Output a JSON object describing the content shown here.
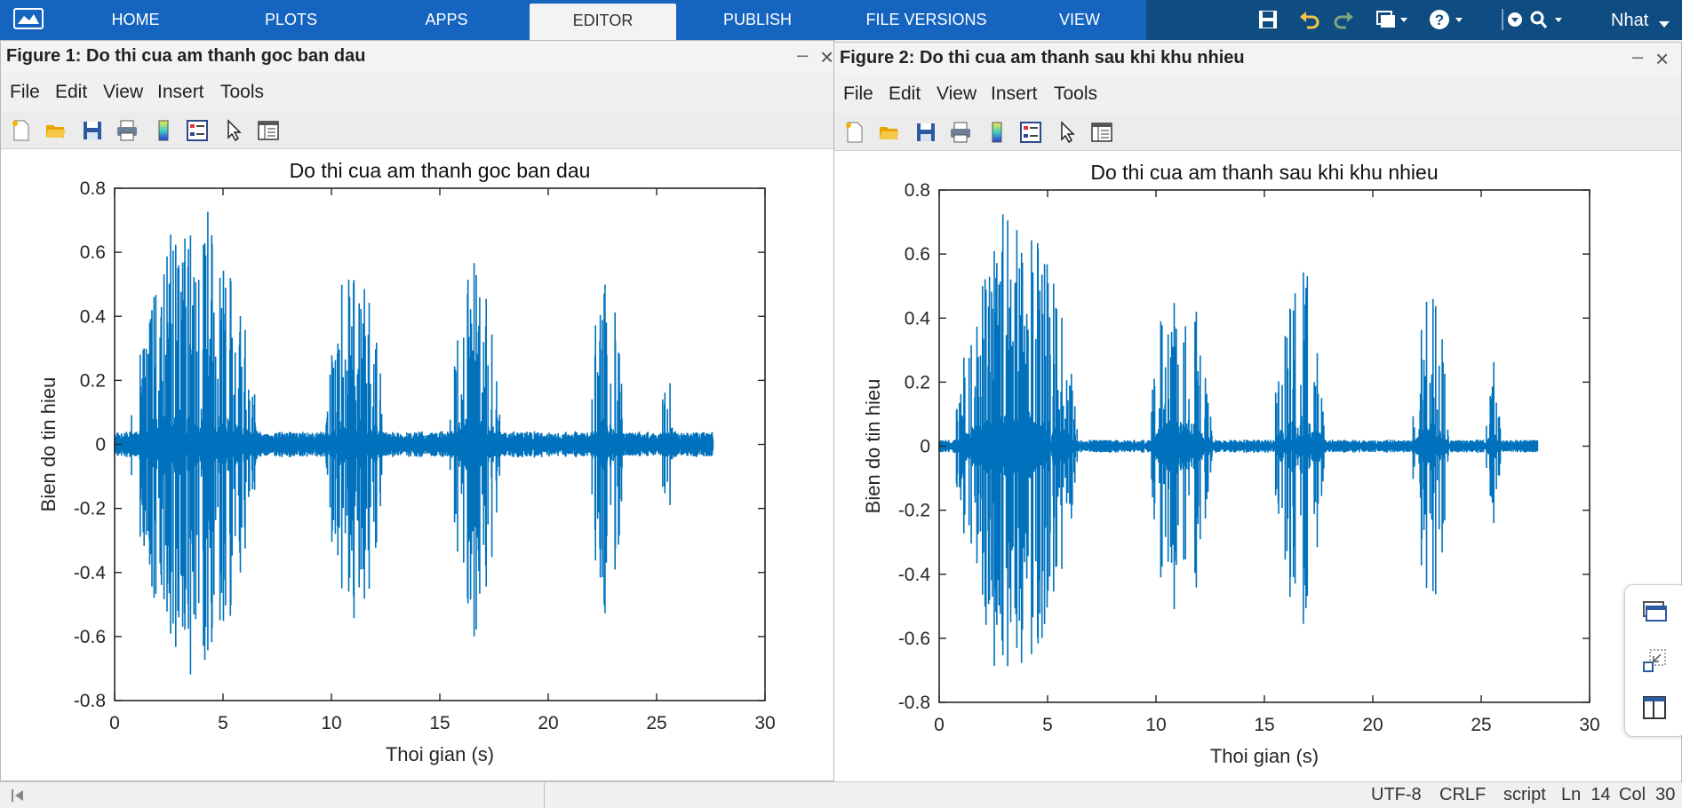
{
  "toolstrip": {
    "tabs": [
      {
        "label": "HOME"
      },
      {
        "label": "PLOTS"
      },
      {
        "label": "APPS"
      },
      {
        "label": "EDITOR"
      },
      {
        "label": "PUBLISH"
      },
      {
        "label": "FILE VERSIONS"
      },
      {
        "label": "VIEW"
      }
    ],
    "active_tab": "EDITOR",
    "user_name": "Nhat",
    "icons": [
      "matlab-logo-icon",
      "save-icon",
      "undo-icon",
      "redo-icon",
      "window-switch-icon",
      "help-icon",
      "community-icon",
      "search-icon"
    ]
  },
  "figures": [
    {
      "window_title": "Figure 1: Do thi cua am thanh goc ban dau",
      "menu": [
        "File",
        "Edit",
        "View",
        "Insert",
        "Tools"
      ],
      "toolbar_icons": [
        "new-figure-icon",
        "open-file-icon",
        "save-figure-icon",
        "print-icon",
        "colorbar-icon",
        "legend-icon",
        "edit-plot-icon",
        "property-inspector-icon"
      ]
    },
    {
      "window_title": "Figure 2: Do thi cua am thanh sau khi khu nhieu",
      "menu": [
        "File",
        "Edit",
        "View",
        "Insert",
        "Tools"
      ],
      "toolbar_icons": [
        "new-figure-icon",
        "open-file-icon",
        "save-figure-icon",
        "print-icon",
        "colorbar-icon",
        "legend-icon",
        "edit-plot-icon",
        "property-inspector-icon"
      ]
    }
  ],
  "chart_data": [
    {
      "type": "line",
      "title": "Do thi cua am thanh goc ban dau",
      "xlabel": "Thoi gian (s)",
      "ylabel": "Bien do tin hieu",
      "xlim": [
        0,
        30
      ],
      "ylim": [
        -0.8,
        0.8
      ],
      "xticks": [
        "0",
        "5",
        "10",
        "15",
        "20",
        "25",
        "30"
      ],
      "yticks": [
        "0.8",
        "0.6",
        "0.4",
        "0.2",
        "0",
        "-0.2",
        "-0.4",
        "-0.6",
        "-0.8"
      ],
      "color": "#0072bd",
      "noise_floor": 0.03,
      "signal_end": 27.6,
      "segments": [
        {
          "start": 0.7,
          "end": 6.6,
          "peak": 0.79
        },
        {
          "start": 9.7,
          "end": 12.6,
          "peak": 0.61
        },
        {
          "start": 15.4,
          "end": 17.8,
          "peak": 0.64
        },
        {
          "start": 21.8,
          "end": 23.5,
          "peak": 0.56
        },
        {
          "start": 25.2,
          "end": 25.8,
          "peak": 0.26
        }
      ]
    },
    {
      "type": "line",
      "title": "Do thi cua am thanh sau khi khu nhieu",
      "xlabel": "Thoi gian (s)",
      "ylabel": "Bien do tin hieu",
      "xlim": [
        0,
        30
      ],
      "ylim": [
        -0.8,
        0.8
      ],
      "xticks": [
        "0",
        "5",
        "10",
        "15",
        "20",
        "25",
        "30"
      ],
      "yticks": [
        "0.8",
        "0.6",
        "0.4",
        "0.2",
        "0",
        "-0.2",
        "-0.4",
        "-0.6",
        "-0.8"
      ],
      "color": "#0072bd",
      "noise_floor": 0.015,
      "signal_end": 27.6,
      "segments": [
        {
          "start": 0.7,
          "end": 6.4,
          "peak": 0.79
        },
        {
          "start": 9.7,
          "end": 12.6,
          "peak": 0.61
        },
        {
          "start": 15.4,
          "end": 17.8,
          "peak": 0.63
        },
        {
          "start": 21.8,
          "end": 23.5,
          "peak": 0.54
        },
        {
          "start": 25.2,
          "end": 25.9,
          "peak": 0.28
        }
      ]
    }
  ],
  "statusbar": {
    "encoding": "UTF-8",
    "line_ending": "CRLF",
    "file_type": "script",
    "line": "Ln  14",
    "col": "Col  30"
  },
  "side_panel_icons": [
    "figure-browser-icon",
    "undock-icon",
    "dock-layout-icon"
  ]
}
